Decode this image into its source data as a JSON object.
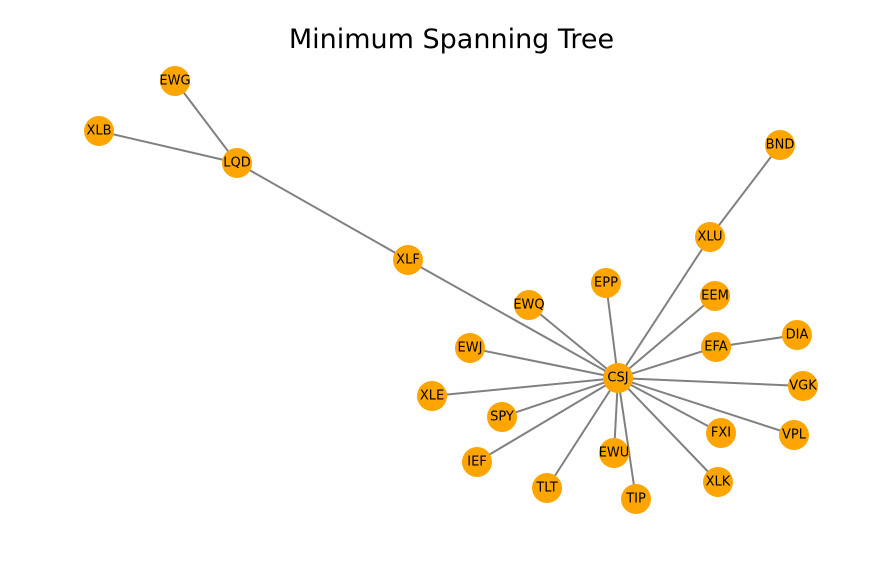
{
  "title": "Minimum Spanning Tree",
  "colors": {
    "node": "#ffa500",
    "edge": "#808080",
    "label": "#000000",
    "background": "#ffffff"
  },
  "nodes": [
    "EWG",
    "XLB",
    "LQD",
    "XLF",
    "BND",
    "XLU",
    "EPP",
    "EEM",
    "EWQ",
    "EWJ",
    "EFA",
    "DIA",
    "CSJ",
    "XLE",
    "VGK",
    "SPY",
    "FXI",
    "VPL",
    "EWU",
    "IEF",
    "XLK",
    "TLT",
    "TIP"
  ],
  "edges": [
    [
      "EWG",
      "LQD"
    ],
    [
      "XLB",
      "LQD"
    ],
    [
      "LQD",
      "XLF"
    ],
    [
      "XLF",
      "CSJ"
    ],
    [
      "BND",
      "XLU"
    ],
    [
      "XLU",
      "CSJ"
    ],
    [
      "EPP",
      "CSJ"
    ],
    [
      "EEM",
      "CSJ"
    ],
    [
      "EWQ",
      "CSJ"
    ],
    [
      "EWJ",
      "CSJ"
    ],
    [
      "EFA",
      "CSJ"
    ],
    [
      "DIA",
      "EFA"
    ],
    [
      "XLE",
      "CSJ"
    ],
    [
      "VGK",
      "CSJ"
    ],
    [
      "SPY",
      "CSJ"
    ],
    [
      "FXI",
      "CSJ"
    ],
    [
      "VPL",
      "CSJ"
    ],
    [
      "EWU",
      "CSJ"
    ],
    [
      "IEF",
      "CSJ"
    ],
    [
      "XLK",
      "CSJ"
    ],
    [
      "TLT",
      "CSJ"
    ],
    [
      "TIP",
      "CSJ"
    ]
  ]
}
